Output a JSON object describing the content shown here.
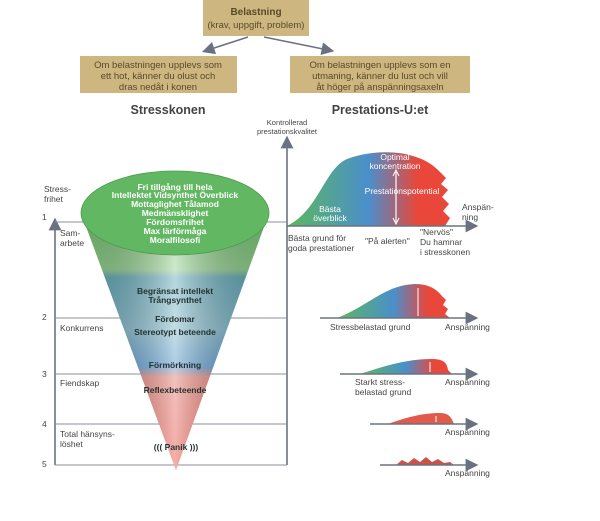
{
  "top_box": {
    "title": "Belastning",
    "subtitle": "(krav, uppgift, problem)"
  },
  "left_box": {
    "lines": [
      "Om belastningen upplevs som",
      "ett hot, känner du olust och",
      "dras nedåt i konen"
    ]
  },
  "right_box": {
    "lines": [
      "Om belastningen upplevs som en",
      "utmaning, känner du lust och vill",
      "åt höger på anspänningsaxeln"
    ]
  },
  "left_heading": "Stresskonen",
  "right_heading": "Prestations-U:et",
  "y_axis_label": [
    "Kontrollerad",
    "prestationskvalitet"
  ],
  "levels": [
    {
      "number": "1",
      "label": [
        "Sam-",
        "arbete"
      ]
    },
    {
      "number": "2",
      "label": [
        "Konkurrens"
      ]
    },
    {
      "number": "3",
      "label": [
        "Fiendskap"
      ]
    },
    {
      "number": "4",
      "label": [
        "Total hänsyns-",
        "löshet"
      ]
    },
    {
      "number": "5"
    }
  ],
  "stress_free_label": [
    "Stress-",
    "frihet"
  ],
  "cone": {
    "green_lines": [
      "Fri tillgång till hela",
      "Intellektet Vidsynthet Överblick",
      "Mottaglighet Tålamod",
      "Medmänsklighet",
      "Fördomsfrihet",
      "Max lärförmåga",
      "Moralfilosofi"
    ],
    "blue_lines": [
      "Begränsat intellekt",
      "Trångsynthet",
      "Fördomar",
      "Stereotypt beteende",
      "Förmörkning"
    ],
    "red_lines": [
      "Reflexbeteende",
      "((( Panik )))"
    ],
    "colors": {
      "green": "#5cb85c",
      "blue": "#4a8fcc",
      "red": "#e8473a"
    }
  },
  "curve1": {
    "peak_label": [
      "Optimal",
      "koncentration"
    ],
    "potential_label": "Prestationspotential",
    "left_label": [
      "Bästa",
      "överblick"
    ],
    "axis_label": [
      "Anspän-",
      "ning"
    ],
    "below_left": [
      "Bästa grund för",
      "goda prestationer"
    ],
    "below_mid": "\"På alerten\"",
    "below_right": [
      "\"Nervös\"",
      "Du hamnar",
      "i stresskonen"
    ]
  },
  "curve2": {
    "label": "Stressbelastad grund",
    "axis_label": "Anspänning"
  },
  "curve3": {
    "label": [
      "Starkt stress-",
      "belastad grund"
    ],
    "axis_label": "Anspänning"
  },
  "curve4": {
    "axis_label": "Anspänning"
  },
  "curve5": {
    "axis_label": "Anspänning"
  }
}
